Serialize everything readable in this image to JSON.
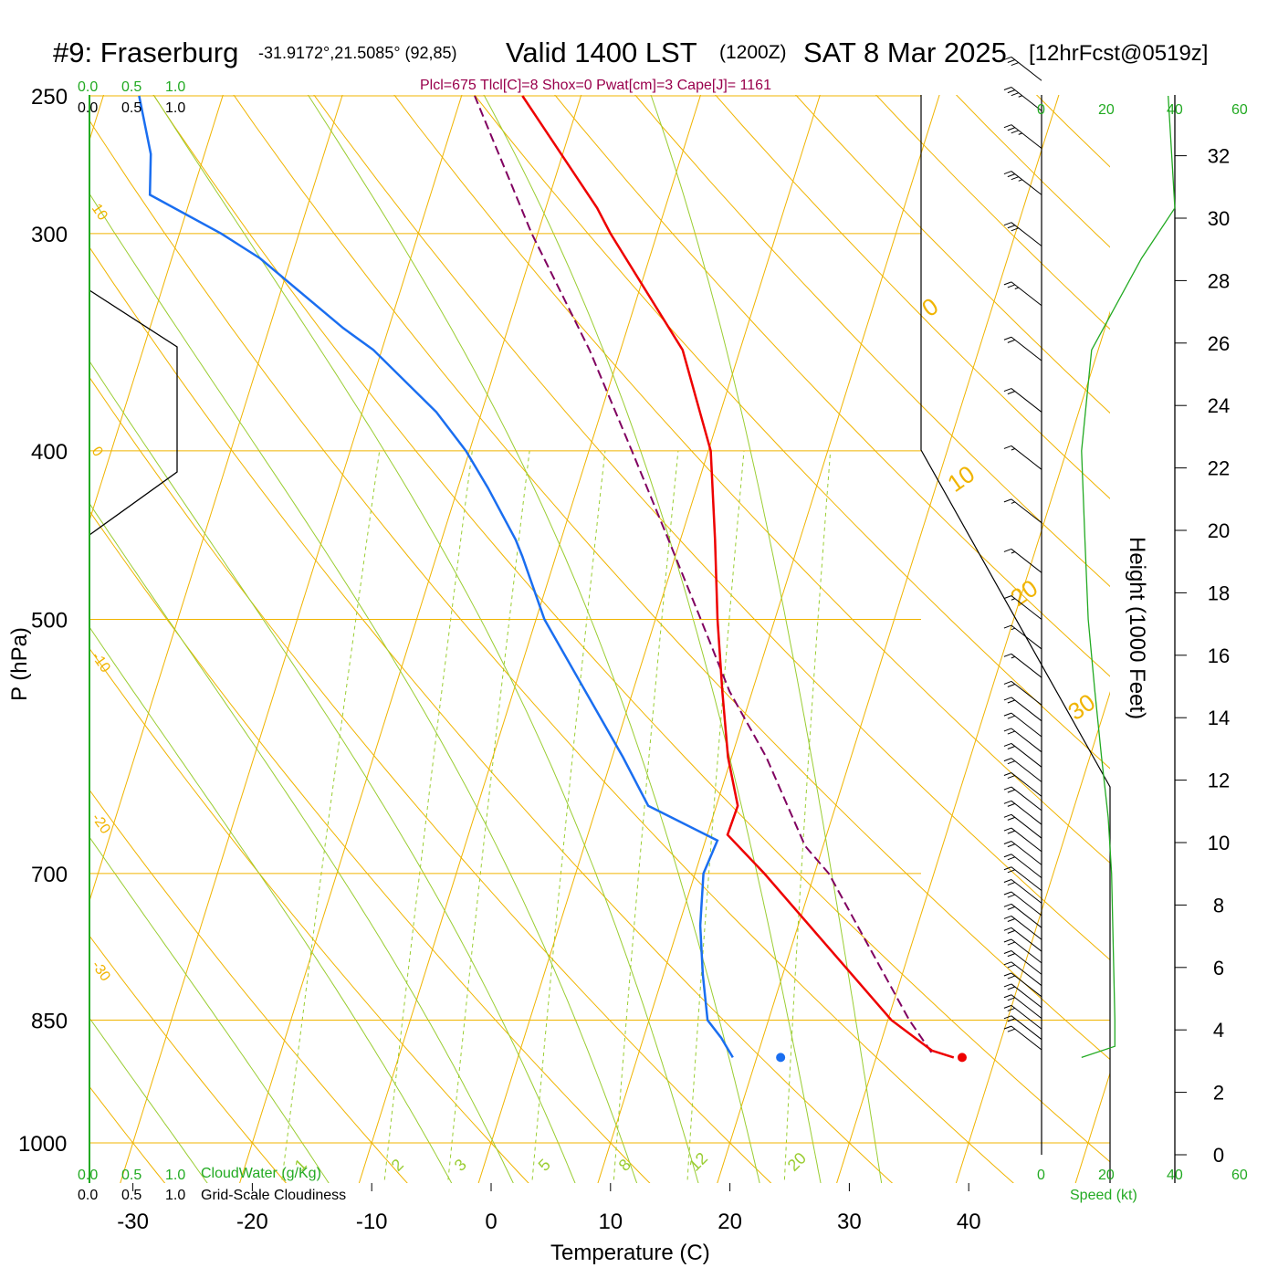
{
  "header": {
    "station": "#9: Fraserburg",
    "coords": "-31.9172°,21.5085° (92,85)",
    "valid": "Valid 1400 LST",
    "utc": "(1200Z)",
    "date": "SAT 8 Mar 2025",
    "forecast": "[12hrFcst@0519z]"
  },
  "indices_line": "Plcl=675 Tlcl[C]=8 Shox=0 Pwat[cm]=3 Cape[J]= 1161",
  "cloud_scale": {
    "top_green": [
      "0.0",
      "0.5",
      "1.0"
    ],
    "top_black": [
      "0.0",
      "0.5",
      "1.0"
    ],
    "bottom_green": [
      "0.0",
      "0.5",
      "1.0"
    ],
    "bottom_black": [
      "0.0",
      "0.5",
      "1.0"
    ],
    "cloudwater_label": "CloudWater (g/Kg)",
    "cloudiness_label": "Grid-Scale Cloudiness"
  },
  "speed_scale": {
    "labels": [
      "0",
      "20",
      "40",
      "60"
    ],
    "axis_label": "Speed (kt)"
  },
  "colors": {
    "isotherm": "#f0b400",
    "adiabat": "#9acd32",
    "temperature": "#ee0000",
    "dewpoint": "#1a6ef0",
    "parcel": "#800060",
    "green": "#22aa22",
    "title_red": "#99004c"
  },
  "chart_data": {
    "type": "line",
    "title": "Skew-T log-P sounding, Fraserburg, Valid 1400 LST SAT 8 Mar 2025",
    "xlabel": "Temperature (C)",
    "ylabel": "P (hPa)",
    "right_ylabel": "Height (1000 Feet)",
    "xlim": [
      -34,
      36
    ],
    "ylim": [
      1030,
      250
    ],
    "x_ticks": [
      -30,
      -20,
      -10,
      0,
      10,
      20,
      30,
      40
    ],
    "pressure_ticks": [
      250,
      300,
      400,
      500,
      700,
      850,
      1000
    ],
    "height_ticks": [
      0,
      2,
      4,
      6,
      8,
      10,
      12,
      14,
      16,
      18,
      20,
      22,
      24,
      26,
      28,
      30,
      32
    ],
    "isotherm_labels": [
      "10",
      "0",
      "-10",
      "-20",
      "-30",
      "0",
      "10",
      "20",
      "30"
    ],
    "mixing_ratio_labels": [
      "1",
      "2",
      "3",
      "5",
      "8",
      "12",
      "20"
    ],
    "temperature": [
      [
        893,
        36.5
      ],
      [
        885,
        34.5
      ],
      [
        850,
        30.3
      ],
      [
        700,
        15.8
      ],
      [
        665,
        11.7
      ],
      [
        640,
        11.8
      ],
      [
        600,
        9.7
      ],
      [
        550,
        7.5
      ],
      [
        500,
        5.2
      ],
      [
        450,
        2.9
      ],
      [
        400,
        0.2
      ],
      [
        350,
        -4.8
      ],
      [
        300,
        -13.9
      ],
      [
        290,
        -15.7
      ],
      [
        250,
        -24.9
      ]
    ],
    "dewpoint": [
      [
        893,
        18.0
      ],
      [
        870,
        16.5
      ],
      [
        850,
        14.9
      ],
      [
        800,
        13.3
      ],
      [
        750,
        11.8
      ],
      [
        700,
        10.7
      ],
      [
        670,
        11.0
      ],
      [
        640,
        4.3
      ],
      [
        600,
        0.9
      ],
      [
        500,
        -9.3
      ],
      [
        460,
        -12.8
      ],
      [
        450,
        -13.8
      ],
      [
        420,
        -17.5
      ],
      [
        400,
        -20.3
      ],
      [
        380,
        -23.8
      ],
      [
        350,
        -30.7
      ],
      [
        340,
        -33.8
      ],
      [
        310,
        -42.6
      ],
      [
        300,
        -46.5
      ],
      [
        285,
        -53.5
      ],
      [
        270,
        -54.5
      ],
      [
        250,
        -57.0
      ]
    ],
    "parcel": [
      [
        887,
        34.5
      ],
      [
        850,
        31.8
      ],
      [
        700,
        21.2
      ],
      [
        675,
        18.5
      ],
      [
        600,
        12.9
      ],
      [
        550,
        8.1
      ],
      [
        500,
        3.8
      ],
      [
        450,
        -1.0
      ],
      [
        400,
        -6.4
      ],
      [
        350,
        -12.6
      ],
      [
        300,
        -20.5
      ],
      [
        250,
        -28.9
      ]
    ],
    "surface_temperature": {
      "p": 893,
      "t": 37.2
    },
    "surface_dewpoint": {
      "p": 893,
      "t": 22.0
    },
    "wind_speed_profile": [
      [
        893,
        12
      ],
      [
        880,
        22
      ],
      [
        850,
        22
      ],
      [
        700,
        21
      ],
      [
        650,
        20
      ],
      [
        600,
        18
      ],
      [
        550,
        16
      ],
      [
        500,
        14
      ],
      [
        450,
        13
      ],
      [
        400,
        12
      ],
      [
        350,
        15
      ],
      [
        310,
        30
      ],
      [
        290,
        40
      ],
      [
        250,
        38
      ]
    ],
    "wind_barbs": [
      {
        "p": 884,
        "spd": 20,
        "dir": 320
      },
      {
        "p": 872,
        "spd": 20,
        "dir": 320
      },
      {
        "p": 860,
        "spd": 20,
        "dir": 320
      },
      {
        "p": 848,
        "spd": 20,
        "dir": 320
      },
      {
        "p": 836,
        "spd": 20,
        "dir": 320
      },
      {
        "p": 824,
        "spd": 20,
        "dir": 320
      },
      {
        "p": 812,
        "spd": 20,
        "dir": 320
      },
      {
        "p": 800,
        "spd": 20,
        "dir": 320
      },
      {
        "p": 788,
        "spd": 20,
        "dir": 320
      },
      {
        "p": 776,
        "spd": 20,
        "dir": 320
      },
      {
        "p": 764,
        "spd": 20,
        "dir": 320
      },
      {
        "p": 752,
        "spd": 20,
        "dir": 320
      },
      {
        "p": 740,
        "spd": 20,
        "dir": 320
      },
      {
        "p": 728,
        "spd": 20,
        "dir": 320
      },
      {
        "p": 716,
        "spd": 20,
        "dir": 320
      },
      {
        "p": 704,
        "spd": 20,
        "dir": 320
      },
      {
        "p": 692,
        "spd": 20,
        "dir": 320
      },
      {
        "p": 680,
        "spd": 20,
        "dir": 320
      },
      {
        "p": 668,
        "spd": 20,
        "dir": 320
      },
      {
        "p": 656,
        "spd": 20,
        "dir": 320
      },
      {
        "p": 644,
        "spd": 20,
        "dir": 320
      },
      {
        "p": 632,
        "spd": 20,
        "dir": 320
      },
      {
        "p": 620,
        "spd": 20,
        "dir": 320
      },
      {
        "p": 608,
        "spd": 20,
        "dir": 320
      },
      {
        "p": 596,
        "spd": 20,
        "dir": 320
      },
      {
        "p": 584,
        "spd": 20,
        "dir": 320
      },
      {
        "p": 572,
        "spd": 20,
        "dir": 320
      },
      {
        "p": 560,
        "spd": 20,
        "dir": 320
      },
      {
        "p": 540,
        "spd": 15,
        "dir": 320
      },
      {
        "p": 520,
        "spd": 15,
        "dir": 320
      },
      {
        "p": 500,
        "spd": 15,
        "dir": 320
      },
      {
        "p": 470,
        "spd": 15,
        "dir": 320
      },
      {
        "p": 440,
        "spd": 15,
        "dir": 320
      },
      {
        "p": 410,
        "spd": 15,
        "dir": 320
      },
      {
        "p": 380,
        "spd": 20,
        "dir": 320
      },
      {
        "p": 355,
        "spd": 20,
        "dir": 320
      },
      {
        "p": 330,
        "spd": 25,
        "dir": 320
      },
      {
        "p": 305,
        "spd": 30,
        "dir": 320
      },
      {
        "p": 285,
        "spd": 35,
        "dir": 320
      },
      {
        "p": 268,
        "spd": 35,
        "dir": 320
      },
      {
        "p": 255,
        "spd": 35,
        "dir": 320
      },
      {
        "p": 245,
        "spd": 30,
        "dir": 320
      }
    ]
  }
}
